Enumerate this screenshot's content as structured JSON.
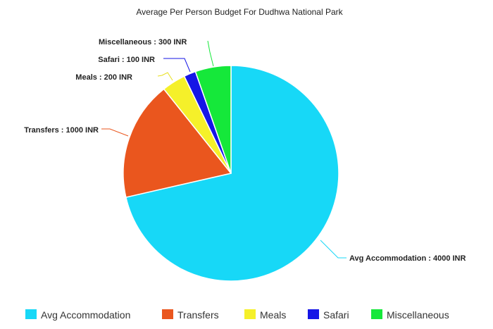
{
  "chart_data": {
    "type": "pie",
    "title": "Average Per Person Budget For Dudhwa National Park",
    "start_angle_deg": 0,
    "direction": "clockwise",
    "slices": [
      {
        "name": "Avg Accommodation",
        "value": 4000,
        "label": "Avg Accommodation : 4000 INR",
        "color": "#17d8f7"
      },
      {
        "name": "Transfers",
        "value": 1000,
        "label": "Transfers : 1000 INR",
        "color": "#ea561e"
      },
      {
        "name": "Meals",
        "value": 200,
        "label": "Meals : 200 INR",
        "color": "#f5f02a"
      },
      {
        "name": "Safari",
        "value": 100,
        "label": "Safari : 100 INR",
        "color": "#1616e6"
      },
      {
        "name": "Miscellaneous",
        "value": 300,
        "label": "Miscellaneous : 300 INR",
        "color": "#15e83a"
      }
    ],
    "legend": {
      "position": "bottom",
      "items": [
        "Avg Accommodation",
        "Transfers",
        "Meals",
        "Safari",
        "Miscellaneous"
      ]
    }
  }
}
